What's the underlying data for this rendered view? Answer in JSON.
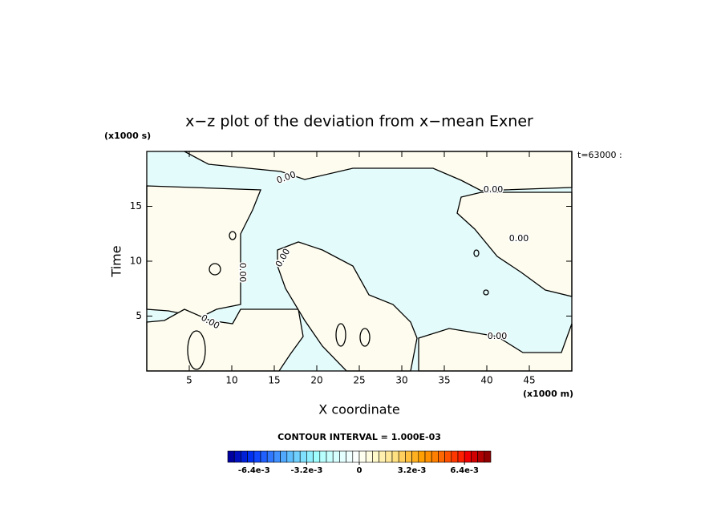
{
  "chart_data": {
    "type": "contour",
    "title": "x−z plot of the deviation from x−mean Exner",
    "xlabel": "X coordinate",
    "ylabel": "Time",
    "x_unit_label": "(x1000 m)",
    "y_unit_label": "(x1000 s)",
    "time_label": "t=63000 :",
    "xlim": [
      0,
      50
    ],
    "ylim": [
      0,
      20
    ],
    "xticks": [
      5,
      10,
      15,
      20,
      25,
      30,
      35,
      40,
      45
    ],
    "yticks": [
      5,
      10,
      15
    ],
    "contour_level": 0,
    "contour_label": "0.00",
    "negative_color": "#e4fbfb",
    "positive_color": "#fdfcee",
    "line_color": "#000000",
    "contour_interval_text": "CONTOUR INTERVAL = 1.000E-03",
    "clim": [
      -0.008,
      0.008
    ],
    "cticks": [
      {
        "value": -0.0064,
        "label": "-6.4e-3"
      },
      {
        "value": -0.0032,
        "label": "-3.2e-3"
      },
      0,
      {
        "value": 0.0032,
        "label": "3.2e-3"
      },
      {
        "value": 0.0064,
        "label": "6.4e-3"
      }
    ],
    "colorbar_colors": [
      "#0000a0",
      "#0010c0",
      "#0020d8",
      "#0030f0",
      "#1048ff",
      "#2060ff",
      "#3078ff",
      "#4090ff",
      "#50a8ff",
      "#60c0ff",
      "#70d0ff",
      "#80e0ff",
      "#90f0ff",
      "#a0ffff",
      "#b8ffff",
      "#c8ffff",
      "#d8ffff",
      "#e4ffff",
      "#f0ffff",
      "#fafffe",
      "#fffff0",
      "#fffce0",
      "#fff8c8",
      "#fff0b0",
      "#ffe898",
      "#ffe080",
      "#ffd060",
      "#ffc040",
      "#ffb020",
      "#ffa000",
      "#ff9000",
      "#ff8000",
      "#ff6800",
      "#ff5000",
      "#ff3800",
      "#ff2000",
      "#f00000",
      "#d00000",
      "#b00000",
      "#900000"
    ]
  }
}
